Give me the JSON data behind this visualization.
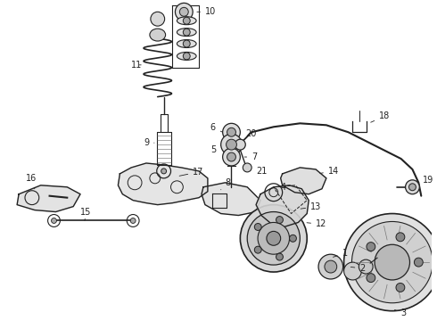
{
  "bg_color": "#ffffff",
  "fig_width": 4.9,
  "fig_height": 3.6,
  "dpi": 100,
  "lc": "#222222",
  "lfs": 7.0
}
